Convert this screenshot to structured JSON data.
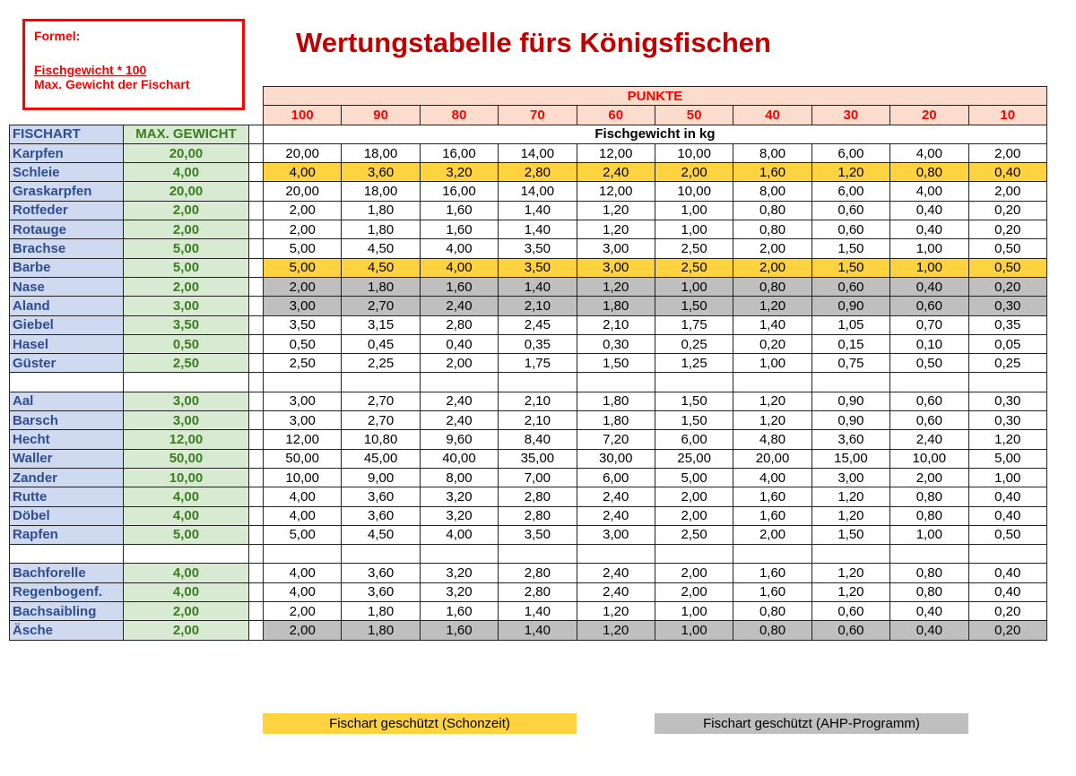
{
  "formula": {
    "label": "Formel:",
    "numerator": "Fischgewicht * 100",
    "denominator": "Max. Gewicht der Fischart"
  },
  "title": "Wertungstabelle fürs Königsfischen",
  "table": {
    "punkte_label": "PUNKTE",
    "points": [
      "100",
      "90",
      "80",
      "70",
      "60",
      "50",
      "40",
      "30",
      "20",
      "10"
    ],
    "col_fischart": "FISCHART",
    "col_max": "MAX. GEWICHT",
    "col_weight": "Fischgewicht in kg",
    "rows": [
      {
        "fish": "Karpfen",
        "max": "20,00",
        "status": "normal",
        "values": [
          "20,00",
          "18,00",
          "16,00",
          "14,00",
          "12,00",
          "10,00",
          "8,00",
          "6,00",
          "4,00",
          "2,00"
        ]
      },
      {
        "fish": "Schleie",
        "max": "4,00",
        "status": "schon",
        "values": [
          "4,00",
          "3,60",
          "3,20",
          "2,80",
          "2,40",
          "2,00",
          "1,60",
          "1,20",
          "0,80",
          "0,40"
        ]
      },
      {
        "fish": "Graskarpfen",
        "max": "20,00",
        "status": "normal",
        "values": [
          "20,00",
          "18,00",
          "16,00",
          "14,00",
          "12,00",
          "10,00",
          "8,00",
          "6,00",
          "4,00",
          "2,00"
        ]
      },
      {
        "fish": "Rotfeder",
        "max": "2,00",
        "status": "normal",
        "values": [
          "2,00",
          "1,80",
          "1,60",
          "1,40",
          "1,20",
          "1,00",
          "0,80",
          "0,60",
          "0,40",
          "0,20"
        ]
      },
      {
        "fish": "Rotauge",
        "max": "2,00",
        "status": "normal",
        "values": [
          "2,00",
          "1,80",
          "1,60",
          "1,40",
          "1,20",
          "1,00",
          "0,80",
          "0,60",
          "0,40",
          "0,20"
        ]
      },
      {
        "fish": "Brachse",
        "max": "5,00",
        "status": "normal",
        "values": [
          "5,00",
          "4,50",
          "4,00",
          "3,50",
          "3,00",
          "2,50",
          "2,00",
          "1,50",
          "1,00",
          "0,50"
        ]
      },
      {
        "fish": "Barbe",
        "max": "5,00",
        "status": "schon",
        "values": [
          "5,00",
          "4,50",
          "4,00",
          "3,50",
          "3,00",
          "2,50",
          "2,00",
          "1,50",
          "1,00",
          "0,50"
        ]
      },
      {
        "fish": "Nase",
        "max": "2,00",
        "status": "ahp",
        "values": [
          "2,00",
          "1,80",
          "1,60",
          "1,40",
          "1,20",
          "1,00",
          "0,80",
          "0,60",
          "0,40",
          "0,20"
        ]
      },
      {
        "fish": "Aland",
        "max": "3,00",
        "status": "ahp",
        "values": [
          "3,00",
          "2,70",
          "2,40",
          "2,10",
          "1,80",
          "1,50",
          "1,20",
          "0,90",
          "0,60",
          "0,30"
        ]
      },
      {
        "fish": "Giebel",
        "max": "3,50",
        "status": "normal",
        "values": [
          "3,50",
          "3,15",
          "2,80",
          "2,45",
          "2,10",
          "1,75",
          "1,40",
          "1,05",
          "0,70",
          "0,35"
        ]
      },
      {
        "fish": "Hasel",
        "max": "0,50",
        "status": "normal",
        "values": [
          "0,50",
          "0,45",
          "0,40",
          "0,35",
          "0,30",
          "0,25",
          "0,20",
          "0,15",
          "0,10",
          "0,05"
        ]
      },
      {
        "fish": "Güster",
        "max": "2,50",
        "status": "normal",
        "values": [
          "2,50",
          "2,25",
          "2,00",
          "1,75",
          "1,50",
          "1,25",
          "1,00",
          "0,75",
          "0,50",
          "0,25"
        ]
      },
      {
        "fish": "",
        "max": "",
        "status": "blank",
        "values": [
          "",
          "",
          "",
          "",
          "",
          "",
          "",
          "",
          "",
          ""
        ]
      },
      {
        "fish": "Aal",
        "max": "3,00",
        "status": "normal",
        "values": [
          "3,00",
          "2,70",
          "2,40",
          "2,10",
          "1,80",
          "1,50",
          "1,20",
          "0,90",
          "0,60",
          "0,30"
        ]
      },
      {
        "fish": "Barsch",
        "max": "3,00",
        "status": "normal",
        "values": [
          "3,00",
          "2,70",
          "2,40",
          "2,10",
          "1,80",
          "1,50",
          "1,20",
          "0,90",
          "0,60",
          "0,30"
        ]
      },
      {
        "fish": "Hecht",
        "max": "12,00",
        "status": "normal",
        "values": [
          "12,00",
          "10,80",
          "9,60",
          "8,40",
          "7,20",
          "6,00",
          "4,80",
          "3,60",
          "2,40",
          "1,20"
        ]
      },
      {
        "fish": "Waller",
        "max": "50,00",
        "status": "normal",
        "values": [
          "50,00",
          "45,00",
          "40,00",
          "35,00",
          "30,00",
          "25,00",
          "20,00",
          "15,00",
          "10,00",
          "5,00"
        ]
      },
      {
        "fish": "Zander",
        "max": "10,00",
        "status": "normal",
        "values": [
          "10,00",
          "9,00",
          "8,00",
          "7,00",
          "6,00",
          "5,00",
          "4,00",
          "3,00",
          "2,00",
          "1,00"
        ]
      },
      {
        "fish": "Rutte",
        "max": "4,00",
        "status": "normal",
        "values": [
          "4,00",
          "3,60",
          "3,20",
          "2,80",
          "2,40",
          "2,00",
          "1,60",
          "1,20",
          "0,80",
          "0,40"
        ]
      },
      {
        "fish": "Döbel",
        "max": "4,00",
        "status": "normal",
        "values": [
          "4,00",
          "3,60",
          "3,20",
          "2,80",
          "2,40",
          "2,00",
          "1,60",
          "1,20",
          "0,80",
          "0,40"
        ]
      },
      {
        "fish": "Rapfen",
        "max": "5,00",
        "status": "normal",
        "values": [
          "5,00",
          "4,50",
          "4,00",
          "3,50",
          "3,00",
          "2,50",
          "2,00",
          "1,50",
          "1,00",
          "0,50"
        ]
      },
      {
        "fish": "",
        "max": "",
        "status": "blank",
        "values": [
          "",
          "",
          "",
          "",
          "",
          "",
          "",
          "",
          "",
          ""
        ]
      },
      {
        "fish": "Bachforelle",
        "max": "4,00",
        "status": "normal",
        "values": [
          "4,00",
          "3,60",
          "3,20",
          "2,80",
          "2,40",
          "2,00",
          "1,60",
          "1,20",
          "0,80",
          "0,40"
        ]
      },
      {
        "fish": "Regenbogenf.",
        "max": "4,00",
        "status": "normal",
        "values": [
          "4,00",
          "3,60",
          "3,20",
          "2,80",
          "2,40",
          "2,00",
          "1,60",
          "1,20",
          "0,80",
          "0,40"
        ]
      },
      {
        "fish": "Bachsaibling",
        "max": "2,00",
        "status": "normal",
        "values": [
          "2,00",
          "1,80",
          "1,60",
          "1,40",
          "1,20",
          "1,00",
          "0,80",
          "0,60",
          "0,40",
          "0,20"
        ]
      },
      {
        "fish": "Äsche",
        "max": "2,00",
        "status": "ahp",
        "values": [
          "2,00",
          "1,80",
          "1,60",
          "1,40",
          "1,20",
          "1,00",
          "0,80",
          "0,60",
          "0,40",
          "0,20"
        ]
      }
    ]
  },
  "legend": {
    "schon": "Fischart geschützt (Schonzeit)",
    "ahp": "Fischart geschützt (AHP-Programm)"
  },
  "colors": {
    "schon": "#ffd23f",
    "ahp": "#bfbfbf",
    "title": "#c00000",
    "formula": "#ff0000"
  }
}
